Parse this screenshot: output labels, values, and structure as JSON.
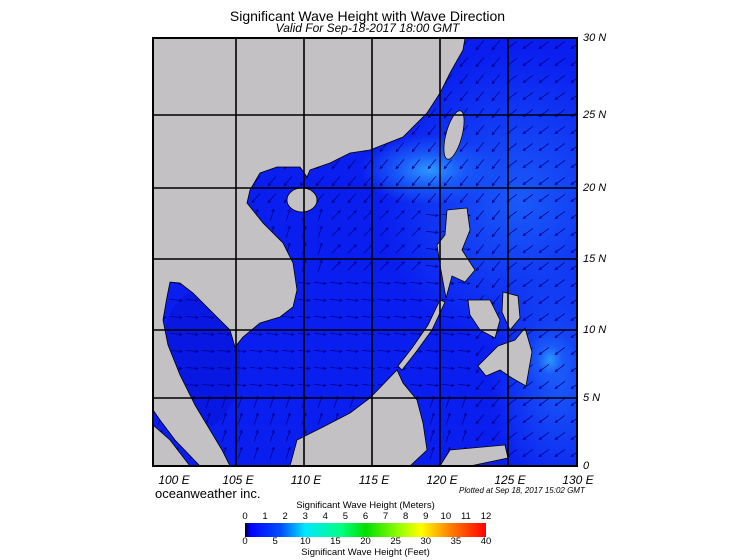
{
  "header": {
    "title": "Significant Wave Height with Wave Direction",
    "subtitle": "Valid For Sep-18-2017 18:00 GMT"
  },
  "map": {
    "lon_labels": [
      "100 E",
      "105 E",
      "110 E",
      "115 E",
      "120 E",
      "125 E",
      "130 E"
    ],
    "lat_labels": [
      "30 N",
      "25 N",
      "20 N",
      "15 N",
      "10 N",
      "5 N",
      "0"
    ],
    "extent": {
      "lon": [
        99.5,
        130
      ],
      "lat": [
        0,
        30
      ]
    },
    "colors": {
      "land": "#c3c1c4",
      "sea_low": "#0a1ef0",
      "sea_mid": "#1a5af8",
      "sea_high": "#2c90ff",
      "arrows": "#00008a"
    }
  },
  "footer": {
    "brand": "oceanweather inc.",
    "plotted": "Plotted at Sep 18, 2017 15:02 GMT"
  },
  "colorbar": {
    "title_top": "Significant Wave Height (Meters)",
    "title_bottom": "Significant Wave Height (Feet)",
    "meters": [
      "0",
      "1",
      "2",
      "3",
      "4",
      "5",
      "6",
      "7",
      "8",
      "9",
      "10",
      "11",
      "12"
    ],
    "feet": [
      "0",
      "5",
      "10",
      "15",
      "20",
      "25",
      "30",
      "35",
      "40"
    ],
    "range_m": [
      0,
      12
    ],
    "range_ft": [
      0,
      40
    ]
  }
}
